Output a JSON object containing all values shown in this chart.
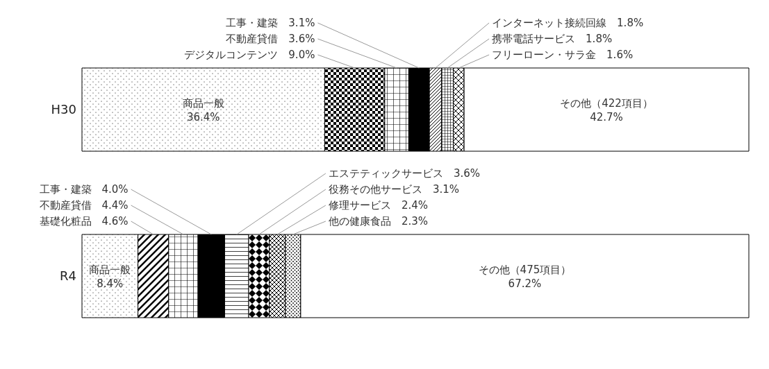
{
  "chart_data": {
    "type": "bar",
    "orientation": "horizontal",
    "stacked": true,
    "categories": [
      "H30",
      "R4"
    ],
    "series": [
      {
        "name": "商品一般",
        "color": "#000000",
        "values": [
          36.4,
          8.4
        ],
        "value_labels": [
          "36.4%",
          "8.4%"
        ]
      },
      {
        "name": "デジタルコンテンツ",
        "color": "#000000",
        "values": [
          9.0,
          null
        ],
        "value_labels": [
          "9.0%",
          null
        ]
      },
      {
        "name": "基礎化粧品",
        "color": "#000000",
        "values": [
          null,
          4.6
        ],
        "value_labels": [
          null,
          "4.6%"
        ]
      },
      {
        "name": "不動産貸借",
        "color": "#000000",
        "values": [
          3.6,
          4.4
        ],
        "value_labels": [
          "3.6%",
          "4.4%"
        ]
      },
      {
        "name": "工事・建築",
        "color": "#000000",
        "values": [
          3.1,
          4.0
        ],
        "value_labels": [
          "3.1%",
          "4.0%"
        ]
      },
      {
        "name": "インターネット接続回線",
        "color": "#000000",
        "values": [
          1.8,
          null
        ],
        "value_labels": [
          "1.8%",
          null
        ]
      },
      {
        "name": "携帯電話サービス",
        "color": "#000000",
        "values": [
          1.8,
          null
        ],
        "value_labels": [
          "1.8%",
          null
        ]
      },
      {
        "name": "フリーローン・サラ金",
        "color": "#000000",
        "values": [
          1.6,
          null
        ],
        "value_labels": [
          "1.6%",
          null
        ]
      },
      {
        "name": "エステティックサービス",
        "color": "#000000",
        "values": [
          null,
          3.6
        ],
        "value_labels": [
          null,
          "3.6%"
        ]
      },
      {
        "name": "役務その他サービス",
        "color": "#000000",
        "values": [
          null,
          3.1
        ],
        "value_labels": [
          null,
          "3.1%"
        ]
      },
      {
        "name": "修理サービス",
        "color": "#000000",
        "values": [
          null,
          2.4
        ],
        "value_labels": [
          null,
          "2.4%"
        ]
      },
      {
        "name": "他の健康食品",
        "color": "#000000",
        "values": [
          null,
          2.3
        ],
        "value_labels": [
          null,
          "2.3%"
        ]
      },
      {
        "name": "その他（422項目）",
        "color": "#000000",
        "values": [
          42.7,
          null
        ],
        "value_labels": [
          "42.7%",
          null
        ]
      },
      {
        "name": "その他（475項目）",
        "color": "#000000",
        "values": [
          null,
          67.2
        ],
        "value_labels": [
          null,
          "67.2%"
        ]
      }
    ]
  }
}
